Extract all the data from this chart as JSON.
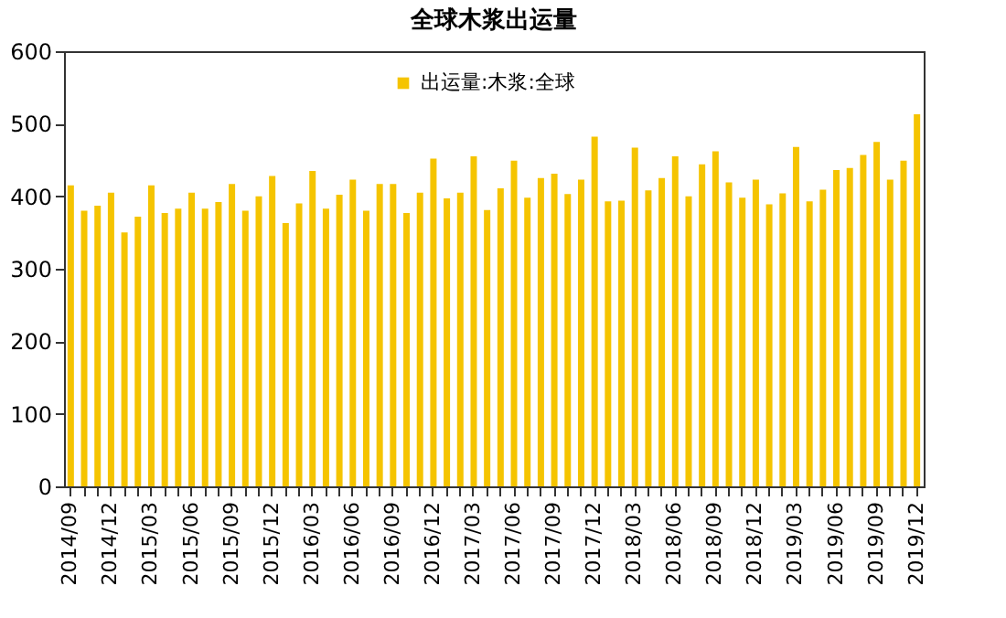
{
  "chart_data": {
    "type": "bar",
    "title": "全球木浆出运量",
    "categories": [
      "2014/09",
      null,
      null,
      "2014/12",
      null,
      null,
      "2015/03",
      null,
      null,
      "2015/06",
      null,
      null,
      "2015/09",
      null,
      null,
      "2015/12",
      null,
      null,
      "2016/03",
      null,
      null,
      "2016/06",
      null,
      null,
      "2016/09",
      null,
      null,
      "2016/12",
      null,
      null,
      "2017/03",
      null,
      null,
      "2017/06",
      null,
      null,
      "2017/09",
      null,
      null,
      "2017/12",
      null,
      null,
      "2018/03",
      null,
      null,
      "2018/06",
      null,
      null,
      "2018/09",
      null,
      null,
      "2018/12",
      null,
      null,
      "2019/03",
      null,
      null,
      "2019/06",
      null,
      null,
      "2019/09",
      null,
      null,
      "2019/12"
    ],
    "series": [
      {
        "name": "出运量:木浆:全球",
        "color": "#f5c400",
        "values": [
          415,
          380,
          387,
          405,
          350,
          372,
          415,
          377,
          383,
          405,
          383,
          392,
          417,
          380,
          400,
          428,
          363,
          390,
          435,
          383,
          402,
          423,
          380,
          417,
          417,
          377,
          405,
          452,
          397,
          405,
          455,
          381,
          411,
          449,
          398,
          425,
          431,
          403,
          423,
          482,
          393,
          394,
          467,
          408,
          425,
          455,
          400,
          444,
          462,
          419,
          398,
          423,
          389,
          404,
          468,
          393,
          409,
          436,
          439,
          457,
          475,
          423,
          449,
          513
        ]
      }
    ],
    "ylim": [
      0,
      600
    ],
    "yticks": [
      0,
      100,
      200,
      300,
      400,
      500,
      600
    ],
    "grid": false,
    "legend": "top"
  }
}
